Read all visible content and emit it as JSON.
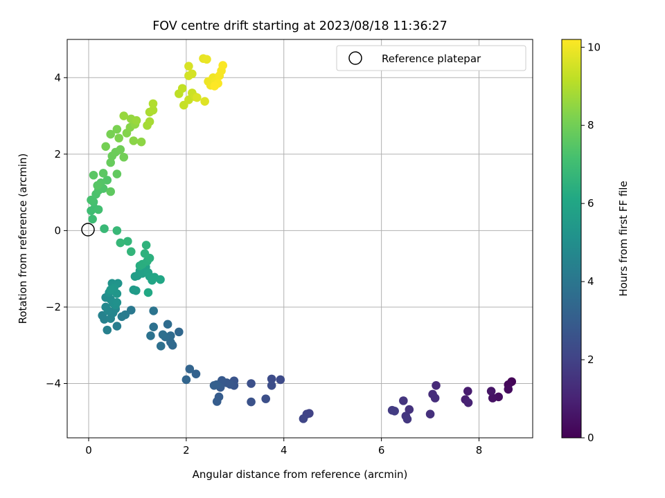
{
  "chart_data": {
    "type": "scatter",
    "title": "FOV centre drift starting at 2023/08/18 11:36:27",
    "xlabel": "Angular distance from reference (arcmin)",
    "ylabel": "Rotation from reference (arcmin)",
    "xlim": [
      -0.44,
      9.1
    ],
    "ylim": [
      -5.42,
      5.0
    ],
    "x_ticks": [
      0,
      2,
      4,
      6,
      8
    ],
    "y_ticks": [
      -4,
      -2,
      0,
      2,
      4
    ],
    "grid": true,
    "legend": {
      "position": "top-right",
      "entries": [
        "Reference platepar"
      ]
    },
    "reference_point": {
      "x": 0,
      "y": 0
    },
    "colorbar": {
      "label": "Hours from first FF file",
      "range": [
        0,
        10.2
      ],
      "ticks": [
        0,
        2,
        4,
        6,
        8,
        10
      ],
      "colormap": "viridis"
    },
    "points": [
      {
        "x": 8.67,
        "y": -3.95,
        "c": 0.1
      },
      {
        "x": 8.6,
        "y": -4.03,
        "c": 0.2
      },
      {
        "x": 8.6,
        "y": -4.15,
        "c": 0.3
      },
      {
        "x": 8.4,
        "y": -4.35,
        "c": 0.4
      },
      {
        "x": 8.28,
        "y": -4.38,
        "c": 0.5
      },
      {
        "x": 8.25,
        "y": -4.2,
        "c": 0.6
      },
      {
        "x": 7.77,
        "y": -4.2,
        "c": 0.8
      },
      {
        "x": 7.72,
        "y": -4.42,
        "c": 0.9
      },
      {
        "x": 7.78,
        "y": -4.5,
        "c": 1.0
      },
      {
        "x": 7.12,
        "y": -4.05,
        "c": 1.2
      },
      {
        "x": 7.05,
        "y": -4.28,
        "c": 1.3
      },
      {
        "x": 7.1,
        "y": -4.38,
        "c": 1.35
      },
      {
        "x": 7.0,
        "y": -4.8,
        "c": 1.4
      },
      {
        "x": 6.57,
        "y": -4.68,
        "c": 1.5
      },
      {
        "x": 6.45,
        "y": -4.45,
        "c": 1.55
      },
      {
        "x": 6.5,
        "y": -4.85,
        "c": 1.6
      },
      {
        "x": 6.53,
        "y": -4.93,
        "c": 1.65
      },
      {
        "x": 6.22,
        "y": -4.7,
        "c": 1.75
      },
      {
        "x": 6.27,
        "y": -4.72,
        "c": 1.8
      },
      {
        "x": 4.52,
        "y": -4.78,
        "c": 2.0
      },
      {
        "x": 4.47,
        "y": -4.8,
        "c": 2.05
      },
      {
        "x": 4.4,
        "y": -4.92,
        "c": 2.1
      },
      {
        "x": 3.93,
        "y": -3.9,
        "c": 2.3
      },
      {
        "x": 3.75,
        "y": -3.88,
        "c": 2.35
      },
      {
        "x": 3.75,
        "y": -4.05,
        "c": 2.4
      },
      {
        "x": 3.63,
        "y": -4.4,
        "c": 2.45
      },
      {
        "x": 3.33,
        "y": -4.0,
        "c": 2.5
      },
      {
        "x": 3.33,
        "y": -4.48,
        "c": 2.55
      },
      {
        "x": 2.98,
        "y": -3.93,
        "c": 2.65
      },
      {
        "x": 2.98,
        "y": -4.05,
        "c": 2.7
      },
      {
        "x": 2.9,
        "y": -4.02,
        "c": 2.75
      },
      {
        "x": 2.83,
        "y": -3.98,
        "c": 2.8
      },
      {
        "x": 2.73,
        "y": -3.92,
        "c": 2.85
      },
      {
        "x": 2.7,
        "y": -4.1,
        "c": 2.9
      },
      {
        "x": 2.67,
        "y": -4.35,
        "c": 2.95
      },
      {
        "x": 2.63,
        "y": -4.47,
        "c": 3.0
      },
      {
        "x": 2.62,
        "y": -4.03,
        "c": 3.05
      },
      {
        "x": 2.57,
        "y": -4.05,
        "c": 3.1
      },
      {
        "x": 2.2,
        "y": -3.75,
        "c": 3.2
      },
      {
        "x": 2.07,
        "y": -3.62,
        "c": 3.25
      },
      {
        "x": 2.0,
        "y": -3.9,
        "c": 3.3
      },
      {
        "x": 1.85,
        "y": -2.65,
        "c": 3.4
      },
      {
        "x": 1.72,
        "y": -3.0,
        "c": 3.45
      },
      {
        "x": 1.68,
        "y": -2.92,
        "c": 3.5
      },
      {
        "x": 1.68,
        "y": -2.75,
        "c": 3.55
      },
      {
        "x": 1.62,
        "y": -2.45,
        "c": 3.6
      },
      {
        "x": 1.57,
        "y": -2.78,
        "c": 3.65
      },
      {
        "x": 1.52,
        "y": -2.72,
        "c": 3.7
      },
      {
        "x": 1.48,
        "y": -3.02,
        "c": 3.75
      },
      {
        "x": 1.33,
        "y": -2.52,
        "c": 3.8
      },
      {
        "x": 1.27,
        "y": -2.75,
        "c": 3.85
      },
      {
        "x": 1.33,
        "y": -2.1,
        "c": 3.9
      },
      {
        "x": 0.87,
        "y": -2.08,
        "c": 4.1
      },
      {
        "x": 0.75,
        "y": -2.2,
        "c": 4.2
      },
      {
        "x": 0.68,
        "y": -2.25,
        "c": 4.25
      },
      {
        "x": 0.58,
        "y": -2.5,
        "c": 4.3
      },
      {
        "x": 0.38,
        "y": -2.6,
        "c": 4.4
      },
      {
        "x": 0.32,
        "y": -2.32,
        "c": 4.45
      },
      {
        "x": 0.28,
        "y": -2.22,
        "c": 4.5
      },
      {
        "x": 0.45,
        "y": -2.3,
        "c": 4.55
      },
      {
        "x": 0.5,
        "y": -2.15,
        "c": 4.6
      },
      {
        "x": 0.55,
        "y": -2.05,
        "c": 4.65
      },
      {
        "x": 0.4,
        "y": -2.1,
        "c": 4.7
      },
      {
        "x": 0.35,
        "y": -2.0,
        "c": 4.75
      },
      {
        "x": 0.35,
        "y": -1.75,
        "c": 4.85
      },
      {
        "x": 0.4,
        "y": -1.72,
        "c": 4.9
      },
      {
        "x": 0.45,
        "y": -1.8,
        "c": 4.95
      },
      {
        "x": 0.5,
        "y": -1.9,
        "c": 5.0
      },
      {
        "x": 0.55,
        "y": -1.95,
        "c": 5.05
      },
      {
        "x": 0.58,
        "y": -1.88,
        "c": 5.1
      },
      {
        "x": 0.42,
        "y": -1.62,
        "c": 5.15
      },
      {
        "x": 0.48,
        "y": -1.38,
        "c": 5.2
      },
      {
        "x": 0.6,
        "y": -1.38,
        "c": 5.25
      },
      {
        "x": 0.58,
        "y": -1.65,
        "c": 5.3
      },
      {
        "x": 0.52,
        "y": -1.5,
        "c": 5.35
      },
      {
        "x": 0.45,
        "y": -1.55,
        "c": 5.4
      },
      {
        "x": 0.92,
        "y": -1.55,
        "c": 5.5
      },
      {
        "x": 0.97,
        "y": -1.57,
        "c": 5.55
      },
      {
        "x": 1.0,
        "y": -1.18,
        "c": 5.6
      },
      {
        "x": 0.95,
        "y": -1.2,
        "c": 5.65
      },
      {
        "x": 1.05,
        "y": -1.05,
        "c": 5.7
      },
      {
        "x": 1.1,
        "y": -1.12,
        "c": 5.75
      },
      {
        "x": 1.17,
        "y": -0.95,
        "c": 5.8
      },
      {
        "x": 1.22,
        "y": -1.1,
        "c": 5.85
      },
      {
        "x": 1.25,
        "y": -1.2,
        "c": 5.9
      },
      {
        "x": 1.3,
        "y": -1.3,
        "c": 5.95
      },
      {
        "x": 1.35,
        "y": -1.22,
        "c": 6.0
      },
      {
        "x": 1.47,
        "y": -1.28,
        "c": 6.05
      },
      {
        "x": 1.22,
        "y": -1.62,
        "c": 6.1
      },
      {
        "x": 1.05,
        "y": -0.92,
        "c": 6.3
      },
      {
        "x": 1.1,
        "y": -0.88,
        "c": 6.35
      },
      {
        "x": 1.2,
        "y": -0.8,
        "c": 6.4
      },
      {
        "x": 1.25,
        "y": -0.72,
        "c": 6.45
      },
      {
        "x": 1.15,
        "y": -0.6,
        "c": 6.5
      },
      {
        "x": 1.18,
        "y": -0.38,
        "c": 6.55
      },
      {
        "x": 0.87,
        "y": -0.55,
        "c": 6.65
      },
      {
        "x": 0.8,
        "y": -0.28,
        "c": 6.7
      },
      {
        "x": 0.65,
        "y": -0.32,
        "c": 6.75
      },
      {
        "x": 0.58,
        "y": 0.0,
        "c": 6.8
      },
      {
        "x": 0.32,
        "y": 0.05,
        "c": 6.85
      },
      {
        "x": 0.08,
        "y": 0.3,
        "c": 6.95
      },
      {
        "x": 0.05,
        "y": 0.52,
        "c": 7.0
      },
      {
        "x": 0.12,
        "y": 0.58,
        "c": 7.05
      },
      {
        "x": 0.2,
        "y": 0.55,
        "c": 7.1
      },
      {
        "x": 0.1,
        "y": 0.75,
        "c": 7.15
      },
      {
        "x": 0.05,
        "y": 0.8,
        "c": 7.2
      },
      {
        "x": 0.15,
        "y": 0.95,
        "c": 7.25
      },
      {
        "x": 0.2,
        "y": 1.05,
        "c": 7.3
      },
      {
        "x": 0.3,
        "y": 1.1,
        "c": 7.35
      },
      {
        "x": 0.38,
        "y": 1.32,
        "c": 7.4
      },
      {
        "x": 0.25,
        "y": 1.25,
        "c": 7.45
      },
      {
        "x": 0.18,
        "y": 1.18,
        "c": 7.5
      },
      {
        "x": 0.1,
        "y": 1.45,
        "c": 7.55
      },
      {
        "x": 0.3,
        "y": 1.5,
        "c": 7.6
      },
      {
        "x": 0.45,
        "y": 1.02,
        "c": 7.65
      },
      {
        "x": 0.58,
        "y": 1.48,
        "c": 7.7
      },
      {
        "x": 0.45,
        "y": 1.78,
        "c": 7.8
      },
      {
        "x": 0.48,
        "y": 1.95,
        "c": 7.85
      },
      {
        "x": 0.55,
        "y": 2.05,
        "c": 7.9
      },
      {
        "x": 0.65,
        "y": 2.12,
        "c": 7.95
      },
      {
        "x": 0.72,
        "y": 1.92,
        "c": 8.0
      },
      {
        "x": 0.35,
        "y": 2.2,
        "c": 8.05
      },
      {
        "x": 0.45,
        "y": 2.52,
        "c": 8.1
      },
      {
        "x": 0.58,
        "y": 2.65,
        "c": 8.15
      },
      {
        "x": 0.62,
        "y": 2.42,
        "c": 8.2
      },
      {
        "x": 0.78,
        "y": 2.55,
        "c": 8.3
      },
      {
        "x": 0.85,
        "y": 2.7,
        "c": 8.35
      },
      {
        "x": 0.92,
        "y": 2.35,
        "c": 8.4
      },
      {
        "x": 1.08,
        "y": 2.32,
        "c": 8.45
      },
      {
        "x": 0.95,
        "y": 2.78,
        "c": 8.5
      },
      {
        "x": 0.87,
        "y": 2.92,
        "c": 8.55
      },
      {
        "x": 0.72,
        "y": 3.0,
        "c": 8.6
      },
      {
        "x": 0.98,
        "y": 2.88,
        "c": 8.65
      },
      {
        "x": 1.2,
        "y": 2.75,
        "c": 8.8
      },
      {
        "x": 1.25,
        "y": 2.85,
        "c": 8.85
      },
      {
        "x": 1.25,
        "y": 3.1,
        "c": 8.9
      },
      {
        "x": 1.32,
        "y": 3.15,
        "c": 8.95
      },
      {
        "x": 1.32,
        "y": 3.32,
        "c": 9.0
      },
      {
        "x": 1.85,
        "y": 3.58,
        "c": 9.2
      },
      {
        "x": 1.92,
        "y": 3.72,
        "c": 9.25
      },
      {
        "x": 1.95,
        "y": 3.28,
        "c": 9.3
      },
      {
        "x": 2.05,
        "y": 3.42,
        "c": 9.35
      },
      {
        "x": 2.12,
        "y": 3.6,
        "c": 9.4
      },
      {
        "x": 2.18,
        "y": 3.5,
        "c": 9.45
      },
      {
        "x": 2.05,
        "y": 4.05,
        "c": 9.5
      },
      {
        "x": 2.12,
        "y": 4.1,
        "c": 9.55
      },
      {
        "x": 2.05,
        "y": 4.3,
        "c": 9.6
      },
      {
        "x": 2.22,
        "y": 3.48,
        "c": 9.65
      },
      {
        "x": 2.38,
        "y": 3.38,
        "c": 9.7
      },
      {
        "x": 2.35,
        "y": 4.5,
        "c": 9.85
      },
      {
        "x": 2.42,
        "y": 4.48,
        "c": 9.9
      },
      {
        "x": 2.45,
        "y": 3.9,
        "c": 9.95
      },
      {
        "x": 2.5,
        "y": 3.8,
        "c": 10.0
      },
      {
        "x": 2.55,
        "y": 4.0,
        "c": 10.0
      },
      {
        "x": 2.6,
        "y": 3.9,
        "c": 10.05
      },
      {
        "x": 2.68,
        "y": 4.05,
        "c": 10.1
      },
      {
        "x": 2.72,
        "y": 4.18,
        "c": 10.1
      },
      {
        "x": 2.75,
        "y": 4.32,
        "c": 10.15
      },
      {
        "x": 2.65,
        "y": 3.85,
        "c": 10.15
      },
      {
        "x": 2.58,
        "y": 3.78,
        "c": 10.2
      }
    ]
  }
}
